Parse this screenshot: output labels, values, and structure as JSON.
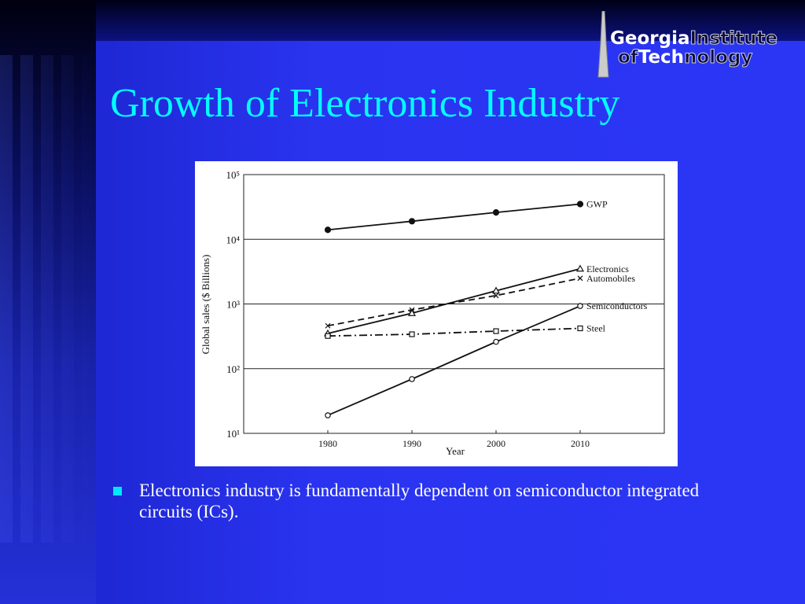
{
  "slide": {
    "title": "Growth of Electronics Industry",
    "bullet": "Electronics industry is fundamentally dependent on semiconductor integrated circuits (ICs).",
    "logo": [
      "Georgia",
      "Institute",
      "of",
      "Tech",
      "nology"
    ]
  },
  "chart_data": {
    "type": "line",
    "xlabel": "Year",
    "ylabel": "Global sales ($ Billions)",
    "x": [
      1980,
      1990,
      2000,
      2010
    ],
    "xlim": [
      1970,
      2020
    ],
    "xticks": [
      1980,
      1990,
      2000,
      2010
    ],
    "ylim": [
      10,
      100000
    ],
    "y_scale": "log",
    "yticks": [
      {
        "value": 10,
        "label": "10¹"
      },
      {
        "value": 100,
        "label": "10²"
      },
      {
        "value": 1000,
        "label": "10³"
      },
      {
        "value": 10000,
        "label": "10⁴"
      },
      {
        "value": 100000,
        "label": "10⁵"
      }
    ],
    "grid": true,
    "series": [
      {
        "name": "GWP",
        "color": "#111111",
        "marker": "filled-circle",
        "line_style": "solid",
        "values": [
          14000,
          19000,
          26000,
          35000
        ]
      },
      {
        "name": "Electronics",
        "color": "#111111",
        "marker": "triangle",
        "line_style": "solid",
        "values": [
          350,
          720,
          1600,
          3500
        ]
      },
      {
        "name": "Automobiles",
        "color": "#111111",
        "marker": "cross",
        "line_style": "dashed",
        "values": [
          460,
          810,
          1350,
          2500
        ]
      },
      {
        "name": "Semiconductors",
        "color": "#111111",
        "marker": "open-circle",
        "line_style": "solid",
        "values": [
          19,
          69,
          260,
          930
        ]
      },
      {
        "name": "Steel",
        "color": "#111111",
        "marker": "square",
        "line_style": "dash-dot",
        "values": [
          320,
          340,
          380,
          420
        ]
      }
    ]
  }
}
